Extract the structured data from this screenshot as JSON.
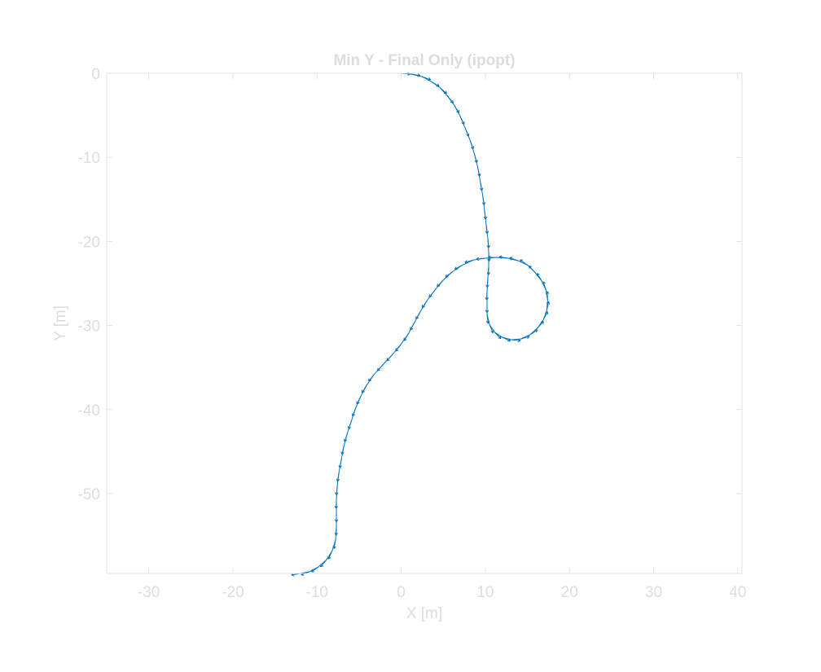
{
  "chart_data": {
    "type": "quiver",
    "title": "Min Y - Final Only (ipopt)",
    "xlabel": "X [m]",
    "ylabel": "Y [m]",
    "xlim": [
      -35,
      40.5
    ],
    "ylim": [
      -59.5,
      0
    ],
    "xticks": [
      -30,
      -20,
      -10,
      0,
      10,
      20,
      30,
      40
    ],
    "yticks": [
      0,
      -10,
      -20,
      -30,
      -40,
      -50
    ],
    "grid": false,
    "colors": {
      "series": "#0072BD",
      "axes": "#e3e3e3",
      "text": "#dddddd"
    },
    "series": [
      {
        "path": [
          [
            0.0,
            0.0
          ],
          [
            1.2,
            -0.1
          ],
          [
            2.5,
            -0.4
          ],
          [
            3.6,
            -1.0
          ],
          [
            4.6,
            -1.7
          ],
          [
            5.5,
            -2.7
          ],
          [
            6.3,
            -3.8
          ],
          [
            7.0,
            -5.1
          ],
          [
            7.6,
            -6.5
          ],
          [
            8.2,
            -8.0
          ],
          [
            8.7,
            -9.6
          ],
          [
            9.1,
            -11.2
          ],
          [
            9.4,
            -12.9
          ],
          [
            9.7,
            -14.6
          ],
          [
            9.9,
            -16.3
          ],
          [
            10.1,
            -18.0
          ],
          [
            10.3,
            -19.7
          ],
          [
            10.4,
            -21.3
          ],
          [
            10.4,
            -22.9
          ],
          [
            10.3,
            -24.4
          ],
          [
            10.2,
            -25.9
          ],
          [
            10.2,
            -27.4
          ],
          [
            10.2,
            -28.7
          ],
          [
            10.5,
            -29.9
          ],
          [
            11.1,
            -30.8
          ],
          [
            12.0,
            -31.4
          ],
          [
            13.1,
            -31.7
          ],
          [
            14.2,
            -31.6
          ],
          [
            15.3,
            -31.1
          ],
          [
            16.2,
            -30.3
          ],
          [
            16.9,
            -29.3
          ],
          [
            17.3,
            -28.2
          ],
          [
            17.4,
            -27.0
          ],
          [
            17.2,
            -25.8
          ],
          [
            16.7,
            -24.7
          ],
          [
            15.9,
            -23.7
          ],
          [
            15.0,
            -22.8
          ],
          [
            13.9,
            -22.3
          ],
          [
            12.7,
            -22.0
          ],
          [
            11.4,
            -21.9
          ],
          [
            10.0,
            -22.0
          ],
          [
            8.6,
            -22.2
          ],
          [
            7.3,
            -22.8
          ],
          [
            6.1,
            -23.6
          ],
          [
            5.0,
            -24.6
          ],
          [
            4.0,
            -25.8
          ],
          [
            3.1,
            -27.0
          ],
          [
            2.3,
            -28.3
          ],
          [
            1.6,
            -29.6
          ],
          [
            0.9,
            -30.9
          ],
          [
            0.0,
            -32.2
          ],
          [
            -1.0,
            -33.4
          ],
          [
            -2.1,
            -34.6
          ],
          [
            -3.2,
            -35.8
          ],
          [
            -4.1,
            -37.1
          ],
          [
            -4.8,
            -38.4
          ],
          [
            -5.4,
            -39.8
          ],
          [
            -5.9,
            -41.3
          ],
          [
            -6.4,
            -42.8
          ],
          [
            -6.8,
            -44.3
          ],
          [
            -7.1,
            -45.9
          ],
          [
            -7.4,
            -47.5
          ],
          [
            -7.6,
            -49.1
          ],
          [
            -7.7,
            -50.7
          ],
          [
            -7.7,
            -52.3
          ],
          [
            -7.7,
            -53.9
          ],
          [
            -7.8,
            -55.5
          ],
          [
            -8.2,
            -56.8
          ],
          [
            -8.9,
            -57.9
          ],
          [
            -9.8,
            -58.7
          ],
          [
            -10.9,
            -59.3
          ],
          [
            -12.0,
            -59.5
          ]
        ]
      }
    ]
  }
}
